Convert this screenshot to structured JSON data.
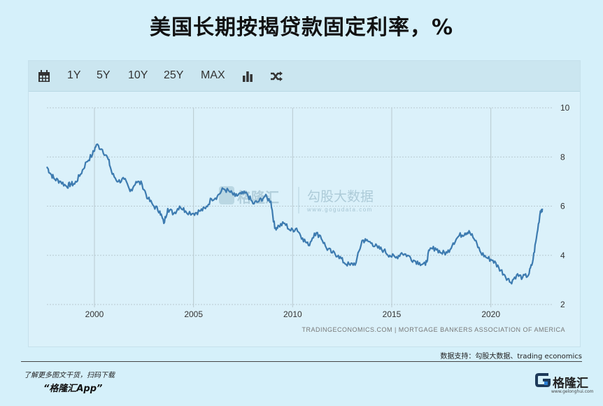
{
  "title": "美国长期按揭贷款固定利率，%",
  "toolbar": {
    "calendar_icon": "calendar-icon",
    "ranges": [
      "1Y",
      "5Y",
      "10Y",
      "25Y",
      "MAX"
    ],
    "chart_type_icon": "bar-chart-icon",
    "shuffle_icon": "shuffle-icon"
  },
  "watermark": {
    "logo_text": "格隆汇",
    "brand": "勾股大数据",
    "url": "www.gogudata.com"
  },
  "source": "TRADINGECONOMICS.COM  |  MORTGAGE BANKERS ASSOCIATION OF AMERICA",
  "support": "数据支持：勾股大数据、trading economics",
  "footer": {
    "line1": "了解更多图文干货，扫码下载",
    "line2": "“格隆汇App”"
  },
  "logo": {
    "name": "格隆汇",
    "url": "www.gelonghui.com"
  },
  "colors": {
    "line": "#3d7bb0",
    "grid": "#b8c9d0",
    "background": "#dbf1fa"
  },
  "chart_data": {
    "type": "line",
    "title": "美国长期按揭贷款固定利率，%",
    "xlabel": "",
    "ylabel": "",
    "xlim": [
      1997.6,
      2022.8
    ],
    "ylim": [
      2,
      10
    ],
    "xticks": [
      2000,
      2005,
      2010,
      2015,
      2020
    ],
    "yticks": [
      2,
      4,
      6,
      8,
      10
    ],
    "grid": true,
    "y_axis_side": "right",
    "series": [
      {
        "x": [
          1997.6,
          1997.8,
          1998.0,
          1998.3,
          1998.6,
          1998.8,
          1999.0,
          1999.3,
          1999.6,
          1999.9,
          2000.1,
          2000.4,
          2000.7,
          2000.9,
          2001.2,
          2001.5,
          2001.8,
          2002.1,
          2002.4,
          2002.7,
          2003.0,
          2003.3,
          2003.5,
          2003.7,
          2004.0,
          2004.3,
          2004.6,
          2005.0,
          2005.3,
          2005.6,
          2005.9,
          2006.2,
          2006.5,
          2006.8,
          2007.1,
          2007.4,
          2007.7,
          2008.0,
          2008.3,
          2008.6,
          2008.9,
          2009.1,
          2009.3,
          2009.6,
          2009.9,
          2010.2,
          2010.5,
          2010.8,
          2011.1,
          2011.4,
          2011.7,
          2012.0,
          2012.3,
          2012.6,
          2012.9,
          2013.2,
          2013.5,
          2013.7,
          2014.0,
          2014.3,
          2014.6,
          2014.9,
          2015.2,
          2015.5,
          2015.8,
          2016.1,
          2016.4,
          2016.7,
          2016.9,
          2017.2,
          2017.5,
          2017.8,
          2018.1,
          2018.4,
          2018.7,
          2018.9,
          2019.2,
          2019.5,
          2019.8,
          2020.1,
          2020.4,
          2020.7,
          2021.0,
          2021.3,
          2021.6,
          2021.9,
          2022.1,
          2022.3,
          2022.5,
          2022.6
        ],
        "values": [
          7.6,
          7.3,
          7.1,
          7.0,
          6.8,
          6.9,
          6.9,
          7.3,
          7.8,
          8.1,
          8.5,
          8.3,
          7.9,
          7.3,
          7.0,
          7.1,
          6.6,
          7.0,
          6.9,
          6.3,
          6.0,
          5.8,
          5.3,
          5.9,
          5.7,
          6.0,
          5.8,
          5.7,
          5.8,
          5.9,
          6.3,
          6.4,
          6.7,
          6.6,
          6.4,
          6.5,
          6.5,
          6.1,
          6.2,
          6.4,
          6.2,
          5.1,
          5.2,
          5.3,
          5.0,
          5.1,
          4.7,
          4.4,
          4.9,
          4.8,
          4.3,
          4.1,
          4.0,
          3.7,
          3.6,
          3.7,
          4.6,
          4.6,
          4.5,
          4.3,
          4.2,
          4.0,
          3.9,
          4.1,
          4.0,
          3.8,
          3.7,
          3.6,
          4.2,
          4.3,
          4.1,
          4.1,
          4.5,
          4.8,
          4.9,
          5.0,
          4.6,
          4.1,
          3.9,
          3.8,
          3.5,
          3.2,
          2.9,
          3.2,
          3.1,
          3.2,
          3.7,
          4.7,
          5.8,
          5.9
        ]
      }
    ]
  }
}
